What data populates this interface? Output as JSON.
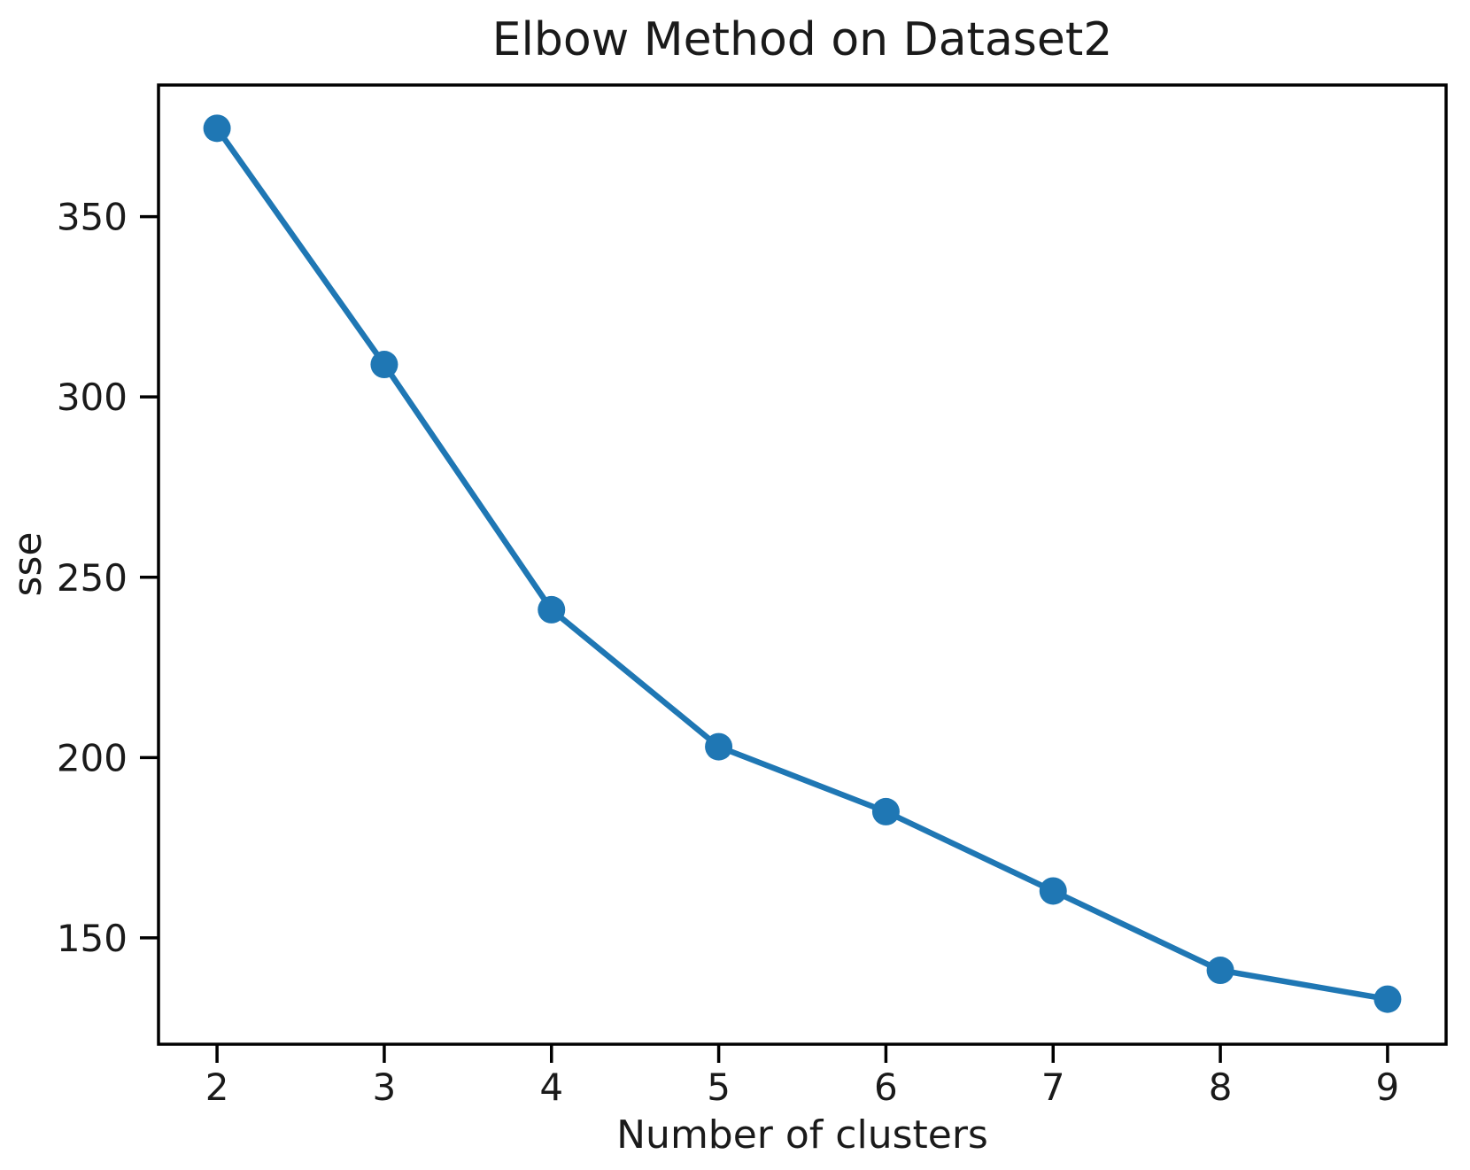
{
  "chart_data": {
    "type": "line",
    "title": "Elbow Method on Dataset2",
    "xlabel": "Number of clusters",
    "ylabel": "sse",
    "x": [
      2,
      3,
      4,
      5,
      6,
      7,
      8,
      9
    ],
    "series": [
      {
        "name": "sse",
        "values": [
          374.5,
          309,
          241,
          203,
          185,
          163,
          141,
          133
        ]
      }
    ],
    "x_tick_labels": [
      "2",
      "3",
      "4",
      "5",
      "6",
      "7",
      "8",
      "9"
    ],
    "x_tick_values": [
      2,
      3,
      4,
      5,
      6,
      7,
      8,
      9
    ],
    "y_tick_labels": [
      "150",
      "200",
      "250",
      "300",
      "350"
    ],
    "y_tick_values": [
      150,
      200,
      250,
      300,
      350
    ],
    "xlim": [
      1.65,
      9.35
    ],
    "ylim": [
      120.5,
      386.5
    ],
    "grid": false,
    "legend_visible": false,
    "line_color": "#1f77b4",
    "marker_color": "#1f77b4",
    "marker_shape": "circle",
    "spine_color": "#000000",
    "text_color": "#1a1a1a",
    "background_color": "#ffffff"
  }
}
